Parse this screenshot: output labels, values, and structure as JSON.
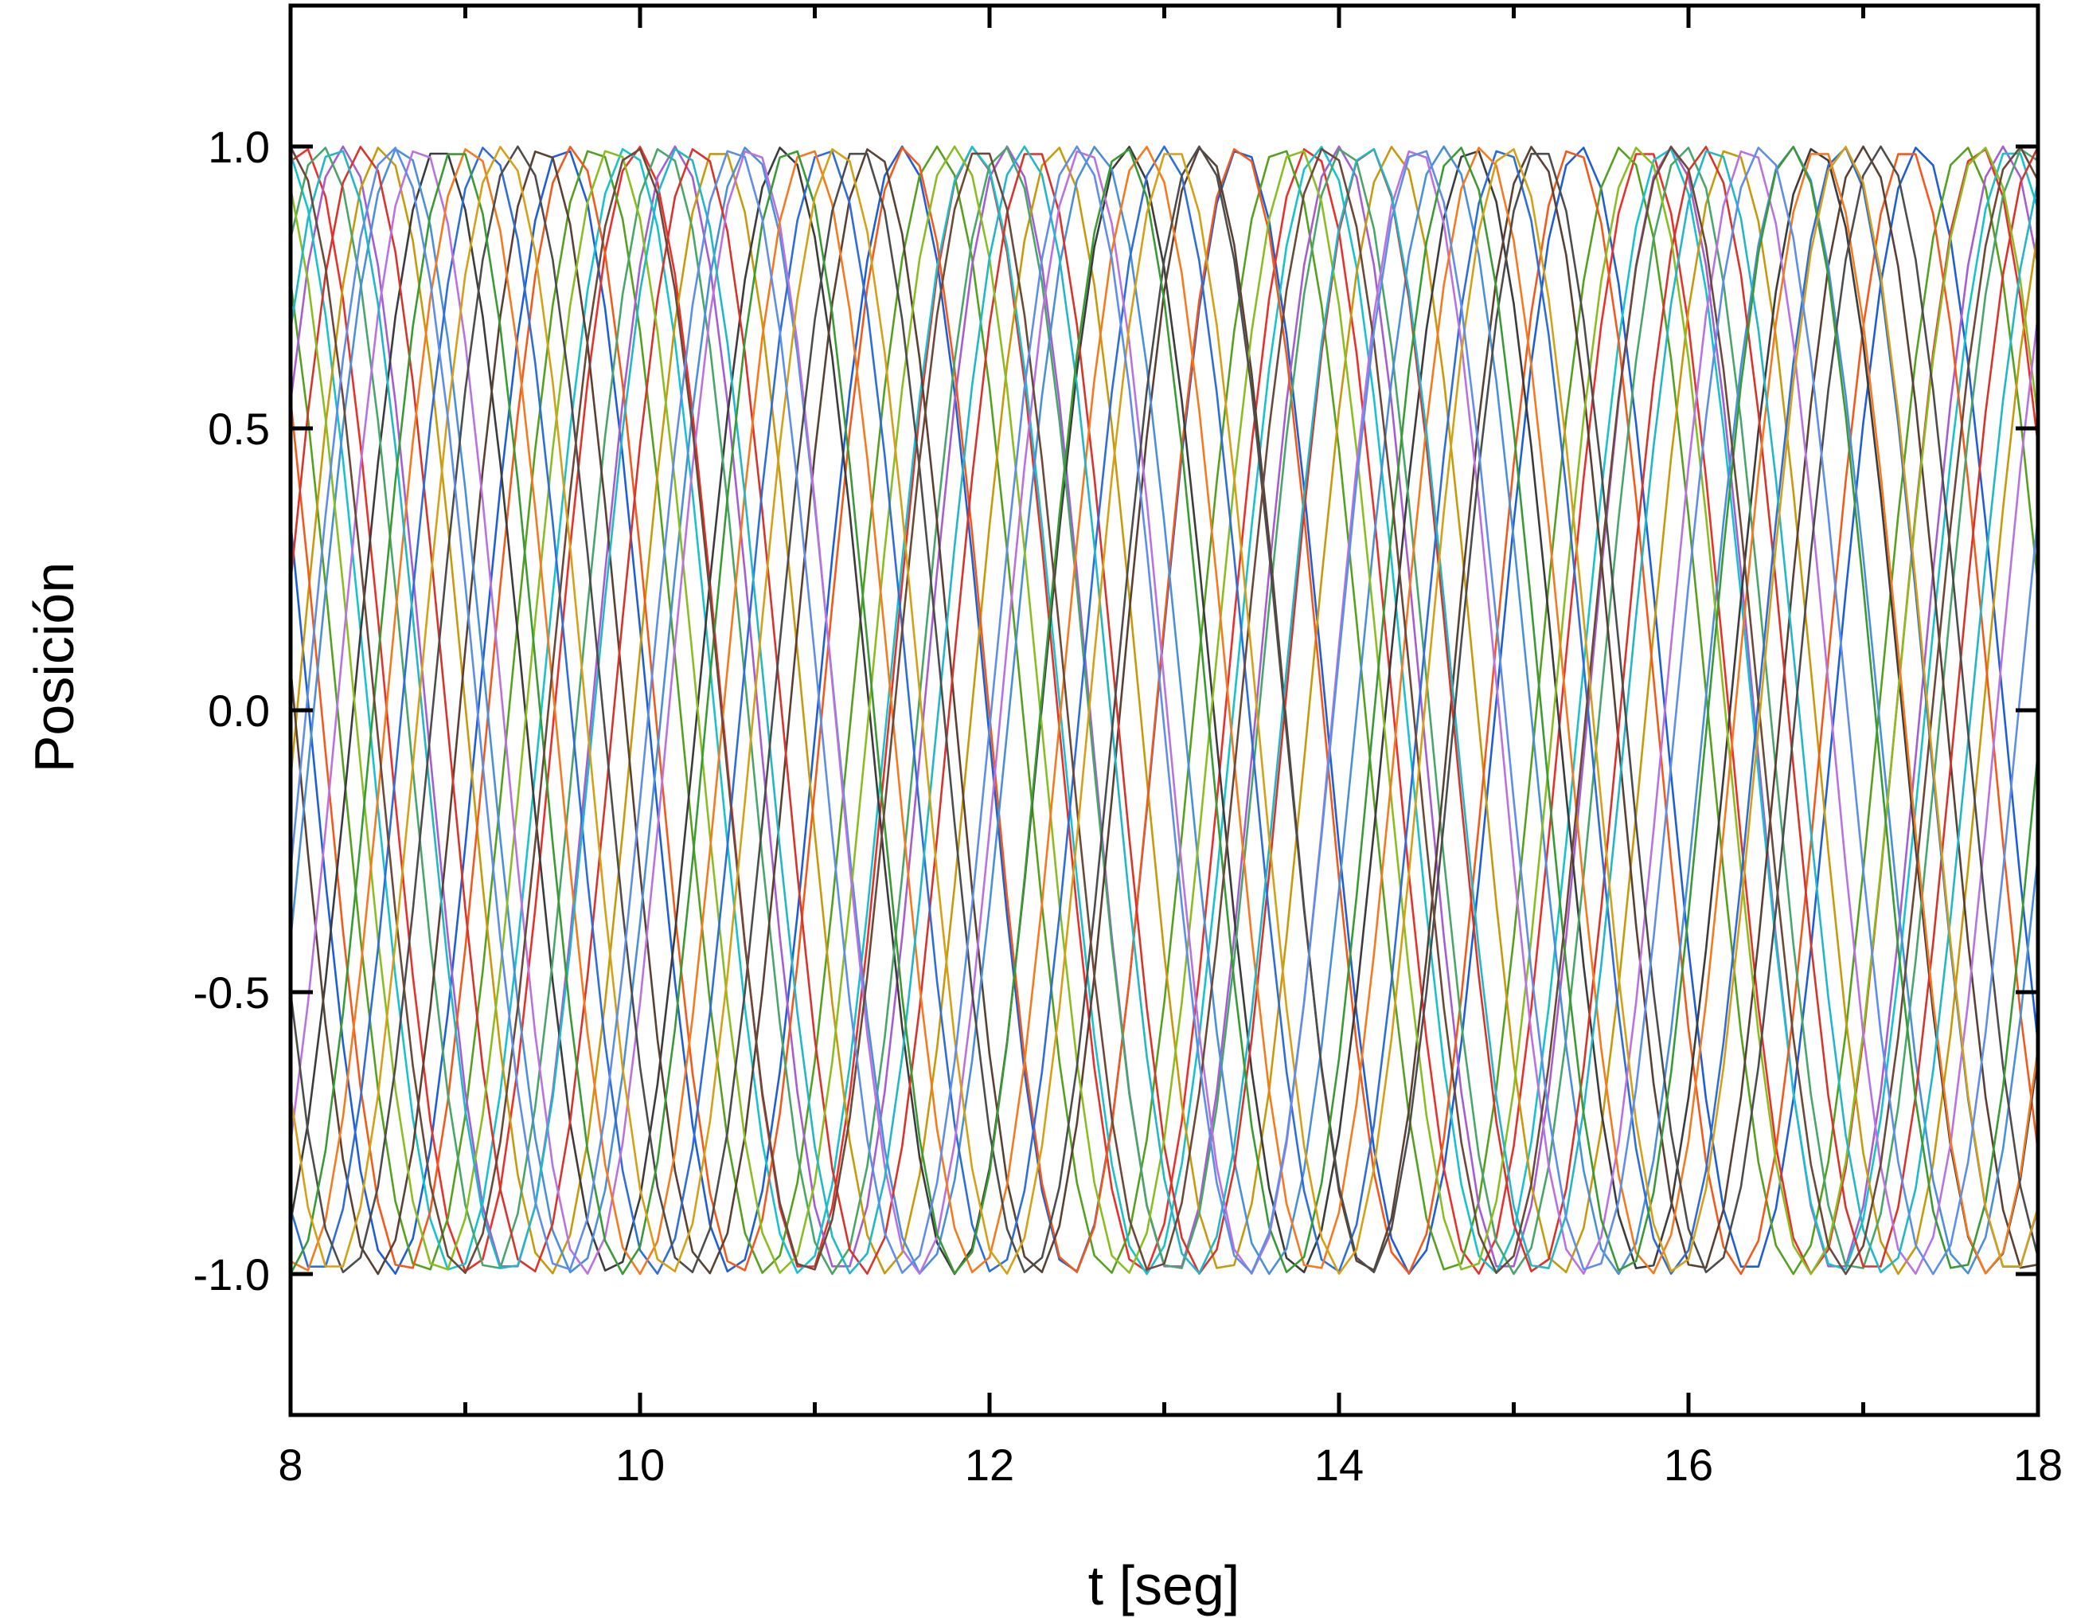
{
  "chart_data": {
    "type": "line",
    "title": "",
    "xlabel": "t [seg]",
    "ylabel": "Posición",
    "xlim": [
      8,
      18
    ],
    "ylim": [
      -1.25,
      1.25
    ],
    "x_ticks": [
      8,
      10,
      12,
      14,
      16,
      18
    ],
    "x_tick_labels": [
      "8",
      "10",
      "12",
      "14",
      "16",
      "18"
    ],
    "x_minor_ticks": [
      9,
      11,
      13,
      15,
      17
    ],
    "y_ticks": [
      1.0,
      0.5,
      0.0,
      -0.5,
      -1.0
    ],
    "y_tick_labels": [
      "1.0",
      "0.5",
      "0.0",
      "-0.5",
      "-1.0"
    ],
    "grid": false,
    "legend": "none",
    "sample_step": 0.1,
    "series": [
      {
        "color": "#1f5fd6",
        "amplitude": 1.0,
        "period": 1.94,
        "phase_t0": 7.62
      },
      {
        "color": "#e8312b",
        "amplitude": 1.0,
        "period": 1.92,
        "phase_t0": 8.07
      },
      {
        "color": "#55a11f",
        "amplitude": 1.0,
        "period": 1.96,
        "phase_t0": 7.78
      },
      {
        "color": "#a55ed0",
        "amplitude": 1.0,
        "period": 1.9,
        "phase_t0": 8.3
      },
      {
        "color": "#17c2cf",
        "amplitude": 1.0,
        "period": 1.98,
        "phase_t0": 7.95
      },
      {
        "color": "#c79a0c",
        "amplitude": 1.0,
        "period": 1.93,
        "phase_t0": 8.52
      },
      {
        "color": "#f25a1c",
        "amplitude": 1.0,
        "period": 1.91,
        "phase_t0": 7.7
      },
      {
        "color": "#3c3c3c",
        "amplitude": 1.0,
        "period": 1.97,
        "phase_t0": 8.85
      },
      {
        "color": "#4aa56a",
        "amplitude": 1.0,
        "period": 1.95,
        "phase_t0": 8.18
      },
      {
        "color": "#5b4034",
        "amplitude": 1.0,
        "period": 1.89,
        "phase_t0": 7.55
      },
      {
        "color": "#4a90d9",
        "amplitude": 1.0,
        "period": 1.99,
        "phase_t0": 8.63
      },
      {
        "color": "#d7342b",
        "amplitude": 1.0,
        "period": 1.92,
        "phase_t0": 8.41
      },
      {
        "color": "#8bbd23",
        "amplitude": 1.0,
        "period": 1.96,
        "phase_t0": 7.88
      },
      {
        "color": "#2f6ed8",
        "amplitude": 1.0,
        "period": 1.94,
        "phase_t0": 9.12
      },
      {
        "color": "#b873e0",
        "amplitude": 1.0,
        "period": 1.9,
        "phase_t0": 8.74
      },
      {
        "color": "#f47a1f",
        "amplitude": 1.0,
        "period": 1.93,
        "phase_t0": 9.03
      },
      {
        "color": "#21b7c8",
        "amplitude": 1.0,
        "period": 1.97,
        "phase_t0": 8.26
      },
      {
        "color": "#4d4d4d",
        "amplitude": 1.0,
        "period": 1.95,
        "phase_t0": 9.3
      },
      {
        "color": "#3a9a35",
        "amplitude": 1.0,
        "period": 1.91,
        "phase_t0": 8.95
      },
      {
        "color": "#6b4a3a",
        "amplitude": 1.0,
        "period": 1.98,
        "phase_t0": 7.99
      },
      {
        "color": "#d4a017",
        "amplitude": 1.0,
        "period": 1.92,
        "phase_t0": 9.21
      },
      {
        "color": "#5e8ee6",
        "amplitude": 1.0,
        "period": 1.96,
        "phase_t0": 8.58
      }
    ]
  }
}
